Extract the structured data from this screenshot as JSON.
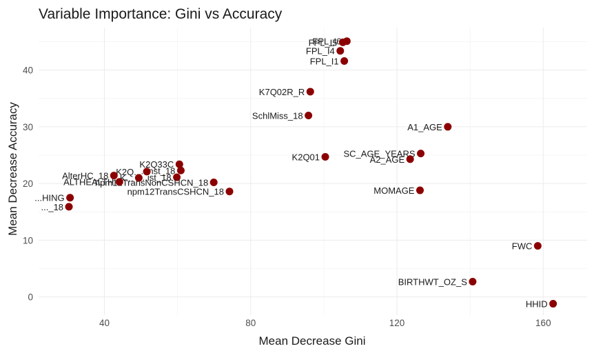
{
  "chart_data": {
    "type": "scatter",
    "title": "Variable Importance: Gini vs Accuracy",
    "xlabel": "Mean Decrease Gini",
    "ylabel": "Mean Decrease Accuracy",
    "xlim": [
      22,
      172
    ],
    "ylim": [
      -3.2,
      47.5
    ],
    "x_ticks": [
      40,
      80,
      120,
      160
    ],
    "y_ticks": [
      0,
      10,
      20,
      30,
      40
    ],
    "grid": true,
    "point_color": "#8B0000",
    "points": [
      {
        "label": "FPL_I6",
        "x": 106.3,
        "y": 45.1,
        "label_text": "FPL_I6"
      },
      {
        "label": "FPL_I5",
        "x": 105.2,
        "y": 44.9,
        "label_text": "FPL_I5"
      },
      {
        "label": "FPL_I4",
        "x": 104.5,
        "y": 43.4,
        "label_text": "FPL_I4"
      },
      {
        "label": "FPL_I1",
        "x": 105.6,
        "y": 41.6,
        "label_text": "FPL_I1"
      },
      {
        "label": "K7Q02R_R",
        "x": 96.3,
        "y": 36.2,
        "label_text": "K7Q02R_R"
      },
      {
        "label": "SchlMiss_18",
        "x": 95.8,
        "y": 32.0,
        "label_text": "SchlMiss_18"
      },
      {
        "label": "A1_AGE",
        "x": 133.9,
        "y": 30.0,
        "label_text": "A1_AGE"
      },
      {
        "label": "K2Q01",
        "x": 100.4,
        "y": 24.7,
        "label_text": "K2Q01"
      },
      {
        "label": "SC_AGE_YEARS",
        "x": 126.5,
        "y": 25.3,
        "label_text": "SC_AGE_YEARS"
      },
      {
        "label": "A2_AGE",
        "x": 123.6,
        "y": 24.3,
        "label_text": "A2_AGE"
      },
      {
        "label": "MOMAGE",
        "x": 126.3,
        "y": 18.8,
        "label_text": "MOMAGE"
      },
      {
        "label": "FWC",
        "x": 158.5,
        "y": 9.0,
        "label_text": "FWC"
      },
      {
        "label": "BIRTHWT_OZ_S",
        "x": 140.7,
        "y": 2.7,
        "label_text": "BIRTHWT_OZ_S"
      },
      {
        "label": "HHID",
        "x": 162.7,
        "y": -1.2,
        "label_text": "HHID"
      },
      {
        "label": "K2Q33C",
        "x": 60.5,
        "y": 23.4,
        "label_text": "K2Q33C"
      },
      {
        "label": "...st_18",
        "x": 60.9,
        "y": 22.3,
        "label_text": "...nst_18"
      },
      {
        "label": "K2Q...",
        "x": 51.6,
        "y": 22.1,
        "label_text": "K2Q..."
      },
      {
        "label": "...ist_18",
        "x": 59.8,
        "y": 21.1,
        "label_text": "...ist_18"
      },
      {
        "label": "npm12TransNonCSHCN_18",
        "x": 69.9,
        "y": 20.2,
        "label_text": "npm12TransNonCSHCN_18"
      },
      {
        "label": "npm12TransCSHCN_18",
        "x": 74.2,
        "y": 18.6,
        "label_text": "npm12TransCSHCN_18"
      },
      {
        "label": "AlterHC",
        "x": 42.6,
        "y": 21.4,
        "label_text": "AlterHC_18"
      },
      {
        "label": "K...",
        "x": 49.4,
        "y": 21.0,
        "label_text": "K..."
      },
      {
        "label": "ALTHEALTH",
        "x": 44.1,
        "y": 20.3,
        "label_text": "ALTHEALTH"
      },
      {
        "label": "...HING",
        "x": 30.6,
        "y": 17.5,
        "label_text": "...HING"
      },
      {
        "label": "..._18",
        "x": 30.3,
        "y": 15.9,
        "label_text": "..._18"
      }
    ]
  }
}
